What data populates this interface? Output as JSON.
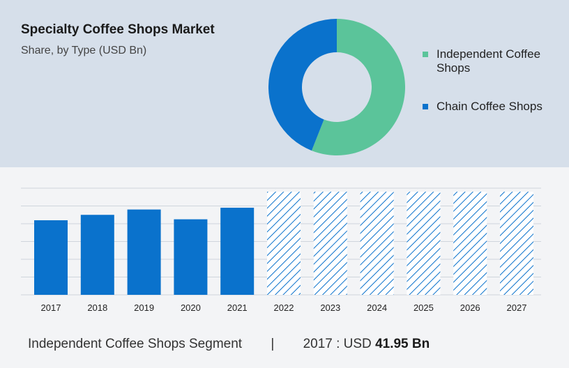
{
  "header": {
    "title": "Specialty Coffee Shops Market",
    "subtitle": "Share, by Type (USD Bn)"
  },
  "legend": [
    {
      "label": "Independent Coffee Shops",
      "color": "#5bc49a"
    },
    {
      "label": "Chain Coffee Shops",
      "color": "#0a72cc"
    }
  ],
  "chart_data": [
    {
      "type": "pie",
      "variant": "donut",
      "slices": [
        {
          "label": "Independent Coffee Shops",
          "value": 56,
          "color": "#5bc49a"
        },
        {
          "label": "Chain Coffee Shops",
          "value": 44,
          "color": "#0a72cc"
        }
      ]
    },
    {
      "type": "bar",
      "categories": [
        "2017",
        "2018",
        "2019",
        "2020",
        "2021",
        "2022",
        "2023",
        "2024",
        "2025",
        "2026",
        "2027"
      ],
      "values": [
        41.95,
        45,
        48,
        42.5,
        49,
        58,
        58,
        58,
        58,
        58,
        58
      ],
      "forecast": [
        false,
        false,
        false,
        false,
        false,
        true,
        true,
        true,
        true,
        true,
        true
      ],
      "ylim": [
        0,
        60
      ],
      "grid": true,
      "colors": {
        "actual": "#0a72cc",
        "forecast": "#0a72cc"
      }
    }
  ],
  "footer": {
    "segment": "Independent Coffee Shops Segment",
    "separator": "|",
    "year_prefix": "2017 : USD",
    "value": "41.95 Bn"
  }
}
